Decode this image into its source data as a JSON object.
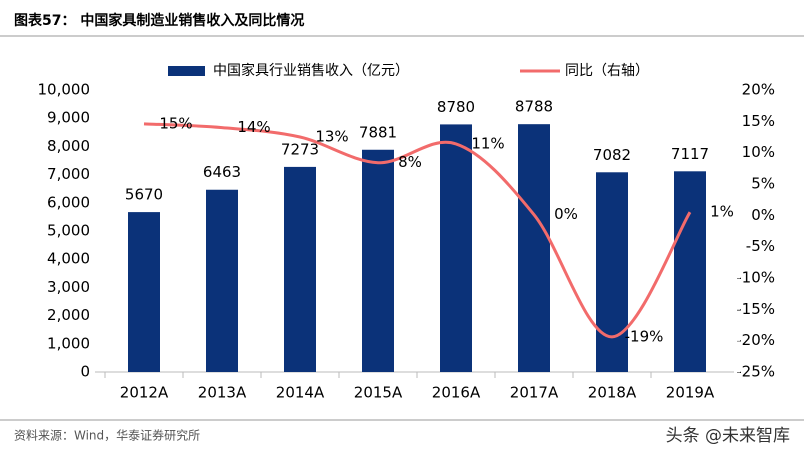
{
  "chart_data": {
    "type": "bar-line",
    "title": "图表57：  中国家具制造业销售收入及同比情况",
    "source": "资料来源：Wind，华泰证券研究所",
    "watermark": "头条 @未来智库",
    "categories": [
      "2012A",
      "2013A",
      "2014A",
      "2015A",
      "2016A",
      "2017A",
      "2018A",
      "2019A"
    ],
    "series": [
      {
        "name": "中国家具行业销售收入（亿元）",
        "type": "bar",
        "color": "#0b3279",
        "values": [
          5670,
          6463,
          7273,
          7881,
          8780,
          8788,
          7082,
          7117
        ]
      },
      {
        "name": "同比（右轴）",
        "type": "line",
        "axis": "y2",
        "color": "#f26b6b",
        "values": [
          14.6,
          14.0,
          12.5,
          8.4,
          11.4,
          0.1,
          -19.4,
          0.5
        ],
        "value_labels": [
          "15%",
          "14%",
          "13%",
          "8%",
          "11%",
          "0%",
          "-19%",
          "1%"
        ]
      }
    ],
    "ylim": [
      0,
      10000
    ],
    "yticks": [
      0,
      {
        "value": 1000,
        "label": "1,000"
      },
      {
        "value": 2000,
        "label": "2,000"
      },
      {
        "value": 3000,
        "label": "3,000"
      },
      {
        "value": 4000,
        "label": "4,000"
      },
      {
        "value": 5000,
        "label": "5,000"
      },
      {
        "value": 6000,
        "label": "6,000"
      },
      {
        "value": 7000,
        "label": "7,000"
      },
      {
        "value": 8000,
        "label": "8,000"
      },
      {
        "value": 9000,
        "label": "9,000"
      },
      {
        "value": 10000,
        "label": "10,000"
      }
    ],
    "y2lim": [
      -25,
      20
    ],
    "y2ticks": [
      {
        "value": -25,
        "label": "-25%"
      },
      {
        "value": -20,
        "label": "-20%"
      },
      {
        "value": -15,
        "label": "-15%"
      },
      {
        "value": -10,
        "label": "-10%"
      },
      {
        "value": -5,
        "label": "-5%"
      },
      {
        "value": 0,
        "label": "0%"
      },
      {
        "value": 5,
        "label": "5%"
      },
      {
        "value": 10,
        "label": "10%"
      },
      {
        "value": 15,
        "label": "15%"
      },
      {
        "value": 20,
        "label": "20%"
      }
    ]
  }
}
